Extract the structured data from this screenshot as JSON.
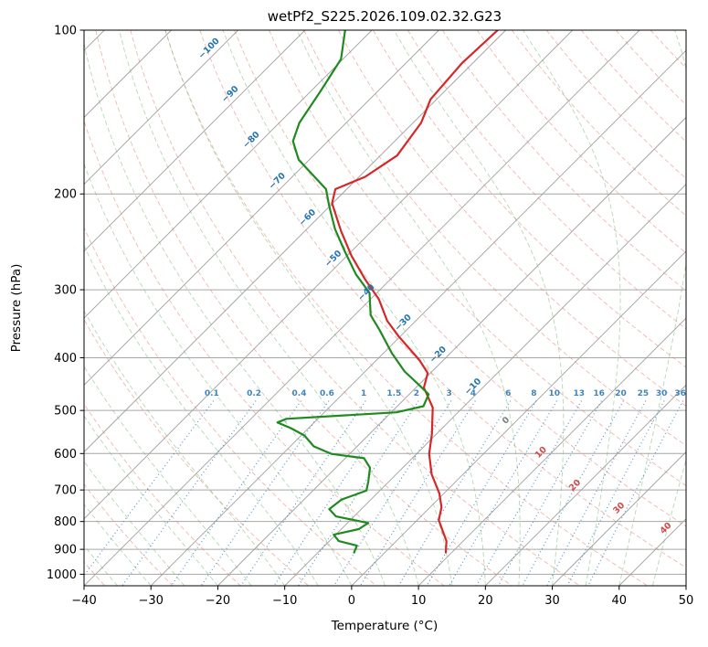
{
  "title": "wetPf2_S225.2026.109.02.32.G23",
  "chart_data": {
    "type": "line",
    "chart_kind": "skewT-logP-sounding",
    "title": "wetPf2_S225.2026.109.02.32.G23",
    "xlabel": "Temperature (°C)",
    "ylabel": "Pressure (hPa)",
    "xlim": [
      -40,
      50
    ],
    "ylim": [
      1050,
      100
    ],
    "x_ticks": [
      -40,
      -30,
      -20,
      -10,
      0,
      10,
      20,
      30,
      40,
      50
    ],
    "y_ticks": [
      100,
      200,
      300,
      400,
      500,
      600,
      700,
      800,
      900,
      1000
    ],
    "skew_degrees": 45,
    "grid": true,
    "isotherm_labels": [
      -100,
      -90,
      -80,
      -70,
      -60,
      -50,
      -40,
      -30,
      -20,
      -10,
      0,
      10,
      20,
      30,
      40
    ],
    "mixing_ratio_labels": [
      0.1,
      0.2,
      0.4,
      0.6,
      1,
      1.5,
      2,
      3,
      4,
      6,
      8,
      10,
      13,
      16,
      20,
      25,
      30,
      36
    ],
    "style": {
      "isotherm_color": "#a0a0a0",
      "pressure_grid_color": "#a6a6a6",
      "dry_adiabat_color": "#e07d6e",
      "moist_adiabat_color": "#77b877",
      "mixing_line_color": "#3f85c0",
      "iso_label_neg_color": "#2474b0",
      "iso_label_zero_color": "#7f7f7f",
      "iso_label_pos_color": "#cf4a4a",
      "temperature_color": "#d62728",
      "dewpoint_color": "#1f8a1f",
      "frame_color": "#000000"
    },
    "series": [
      {
        "name": "temperature",
        "units": {
          "pressure": "hPa",
          "temperature": "degC"
        },
        "points": [
          [
            100,
            -61.2
          ],
          [
            115,
            -61.6
          ],
          [
            134,
            -60.9
          ],
          [
            148,
            -58.8
          ],
          [
            170,
            -57.5
          ],
          [
            186,
            -59.1
          ],
          [
            196,
            -61.7
          ],
          [
            208,
            -60.1
          ],
          [
            234,
            -54.6
          ],
          [
            260,
            -49.3
          ],
          [
            287,
            -43.8
          ],
          [
            312,
            -38.8
          ],
          [
            342,
            -34.3
          ],
          [
            365,
            -30.3
          ],
          [
            404,
            -23.6
          ],
          [
            427,
            -20.4
          ],
          [
            454,
            -18.8
          ],
          [
            494,
            -14.5
          ],
          [
            552,
            -10.7
          ],
          [
            601,
            -8.1
          ],
          [
            655,
            -4.7
          ],
          [
            710,
            -0.7
          ],
          [
            753,
            1.7
          ],
          [
            795,
            3.2
          ],
          [
            869,
            7.5
          ],
          [
            912,
            9.1
          ]
        ]
      },
      {
        "name": "dewpoint",
        "units": {
          "pressure": "hPa",
          "temperature": "degC"
        },
        "points": [
          [
            100,
            -84.0
          ],
          [
            113,
            -80.3
          ],
          [
            129,
            -78.6
          ],
          [
            148,
            -77.0
          ],
          [
            160,
            -75.2
          ],
          [
            173,
            -71.6
          ],
          [
            187,
            -66.3
          ],
          [
            196,
            -63.1
          ],
          [
            210,
            -60.2
          ],
          [
            232,
            -55.8
          ],
          [
            255,
            -51.0
          ],
          [
            281,
            -45.9
          ],
          [
            304,
            -41.1
          ],
          [
            334,
            -37.6
          ],
          [
            356,
            -34.0
          ],
          [
            392,
            -28.8
          ],
          [
            424,
            -24.1
          ],
          [
            449,
            -19.9
          ],
          [
            467,
            -17.1
          ],
          [
            491,
            -16.1
          ],
          [
            504,
            -19.2
          ],
          [
            518,
            -34.7
          ],
          [
            526,
            -35.5
          ],
          [
            539,
            -32.6
          ],
          [
            556,
            -29.5
          ],
          [
            582,
            -26.5
          ],
          [
            601,
            -22.7
          ],
          [
            612,
            -17.2
          ],
          [
            637,
            -14.9
          ],
          [
            675,
            -13.1
          ],
          [
            702,
            -12.0
          ],
          [
            729,
            -14.4
          ],
          [
            759,
            -14.8
          ],
          [
            783,
            -12.7
          ],
          [
            805,
            -6.9
          ],
          [
            826,
            -7.4
          ],
          [
            846,
            -10.3
          ],
          [
            869,
            -8.6
          ],
          [
            886,
            -5.2
          ],
          [
            912,
            -4.6
          ]
        ]
      }
    ]
  }
}
